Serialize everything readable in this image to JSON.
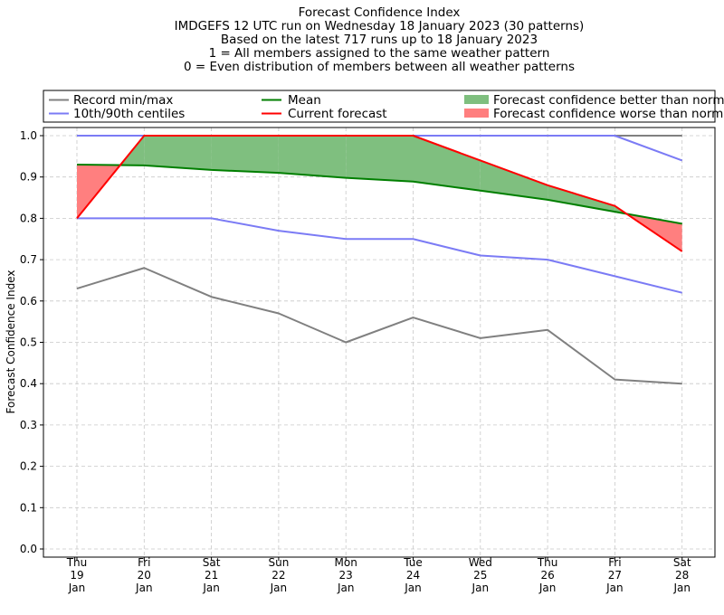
{
  "chart_data": {
    "type": "line",
    "title_lines": [
      "Forecast Confidence Index",
      "IMDGEFS 12 UTC run on Wednesday 18 January 2023 (30 patterns)",
      "Based on the latest 717 runs up to 18 January 2023",
      "1 = All members assigned to the same weather pattern",
      "0 = Even distribution of members between all weather patterns"
    ],
    "ylabel": "Forecast Confidence Index",
    "xlabel": "",
    "ylim": [
      0,
      1
    ],
    "yticks": [
      "0.0",
      "0.1",
      "0.2",
      "0.3",
      "0.4",
      "0.5",
      "0.6",
      "0.7",
      "0.8",
      "0.9",
      "1.0"
    ],
    "categories": [
      [
        "Thu",
        "19",
        "Jan"
      ],
      [
        "Fri",
        "20",
        "Jan"
      ],
      [
        "Sat",
        "21",
        "Jan"
      ],
      [
        "Sun",
        "22",
        "Jan"
      ],
      [
        "Mon",
        "23",
        "Jan"
      ],
      [
        "Tue",
        "24",
        "Jan"
      ],
      [
        "Wed",
        "25",
        "Jan"
      ],
      [
        "Thu",
        "26",
        "Jan"
      ],
      [
        "Fri",
        "27",
        "Jan"
      ],
      [
        "Sat",
        "28",
        "Jan"
      ]
    ],
    "grid": true,
    "legend_position": "top",
    "legend": [
      {
        "label": "Record min/max",
        "kind": "line",
        "color": "#808080"
      },
      {
        "label": "10th/90th centiles",
        "kind": "line",
        "color": "#7b7bf5"
      },
      {
        "label": "Mean",
        "kind": "line",
        "color": "#007f00"
      },
      {
        "label": "Current forecast",
        "kind": "line",
        "color": "#ff0000"
      },
      {
        "label": "Forecast confidence better than normal",
        "kind": "patch",
        "color": "#7fbf7f"
      },
      {
        "label": "Forecast confidence worse than normal",
        "kind": "patch",
        "color": "#ff7f7f"
      }
    ],
    "series": [
      {
        "id": "record_max",
        "color": "#808080",
        "values": [
          1.0,
          1.0,
          1.0,
          1.0,
          1.0,
          1.0,
          1.0,
          1.0,
          1.0,
          1.0
        ]
      },
      {
        "id": "record_min",
        "color": "#808080",
        "values": [
          0.63,
          0.68,
          0.61,
          0.57,
          0.5,
          0.56,
          0.51,
          0.53,
          0.41,
          0.4
        ]
      },
      {
        "id": "p90",
        "color": "#7b7bf5",
        "values": [
          1.0,
          1.0,
          1.0,
          1.0,
          1.0,
          1.0,
          1.0,
          1.0,
          1.0,
          0.94
        ]
      },
      {
        "id": "p10",
        "color": "#7b7bf5",
        "values": [
          0.8,
          0.8,
          0.8,
          0.77,
          0.75,
          0.75,
          0.71,
          0.7,
          0.66,
          0.62
        ]
      },
      {
        "id": "mean",
        "color": "#007f00",
        "values": [
          0.93,
          0.928,
          0.917,
          0.91,
          0.898,
          0.889,
          0.867,
          0.845,
          0.816,
          0.787
        ]
      },
      {
        "id": "current",
        "color": "#ff0000",
        "values": [
          0.8,
          1.0,
          1.0,
          1.0,
          1.0,
          1.0,
          0.94,
          0.88,
          0.83,
          0.72
        ]
      }
    ],
    "fill_better_color": "#7fbf7f",
    "fill_worse_color": "#ff7f7f"
  }
}
